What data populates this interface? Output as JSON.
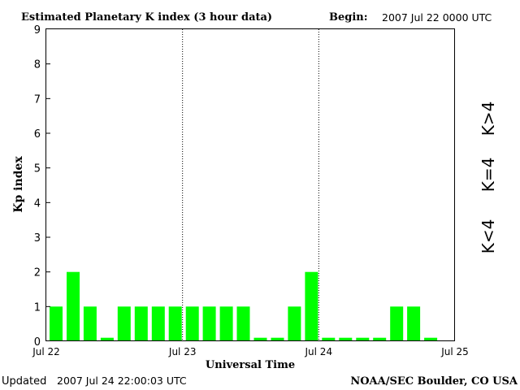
{
  "header": {
    "title": "Estimated Planetary K index (3 hour data)",
    "begin_label": "Begin:",
    "begin_value": "2007 Jul 22 0000 UTC"
  },
  "footer": {
    "updated_label": "Updated",
    "updated_value": "2007 Jul 24 22:00:03 UTC",
    "credit": "NOAA/SEC Boulder, CO USA"
  },
  "legend": {
    "low": "K<4",
    "mid": "K=4",
    "high": "K>4"
  },
  "colors": {
    "low": "#00ff00",
    "mid": "#ffd700",
    "high": "#ff2000",
    "frame": "#000000",
    "background": "#ffffff"
  },
  "chart_data": {
    "type": "bar",
    "title": "Estimated Planetary K index (3 hour data)",
    "xlabel": "Universal Time",
    "ylabel": "Kp index",
    "ylim": [
      0,
      9
    ],
    "yticks": [
      "0",
      "1",
      "2",
      "3",
      "4",
      "5",
      "6",
      "7",
      "8",
      "9"
    ],
    "xticks": [
      "Jul 22",
      "Jul 23",
      "Jul 24",
      "Jul 25"
    ],
    "slots": 24,
    "values": [
      1,
      2,
      1,
      0.1,
      1,
      1,
      1,
      1,
      1,
      1,
      1,
      1,
      0.1,
      0.1,
      1,
      2,
      0.1,
      0.1,
      0.1,
      0.1,
      1,
      1,
      0.1
    ],
    "day_separators": true,
    "grid": false
  }
}
